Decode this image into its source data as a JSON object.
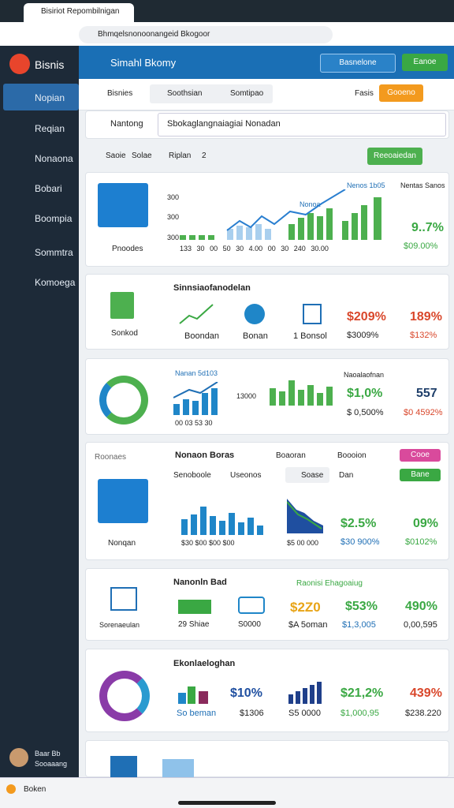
{
  "browser": {
    "tab": "Bisiriot Repombilnigan",
    "address": "Bhmqelsnonoonangeid Bkogoor"
  },
  "sidebar": {
    "logo": "Bisnis",
    "items": [
      "Nopian",
      "Reqian",
      "Nonaona",
      "Bobari",
      "Boompia",
      "Sommtra",
      "Komoega"
    ],
    "user": [
      "Baar Bb",
      "Sooaaang"
    ]
  },
  "header": {
    "title": "Simahl Bkomy",
    "buttons": [
      "Basnelone",
      "Eanoe"
    ]
  },
  "toolbar": {
    "tabs": [
      "Bisnies",
      "Soothsian",
      "Somtipao"
    ],
    "right": "Fasis",
    "action": "Gooeno"
  },
  "search": {
    "label": "Nantong",
    "value": "Sbokaglangnaiagiai Nonadan"
  },
  "filter": {
    "items": [
      "Saoie",
      "Solae",
      "Riplan",
      "2"
    ],
    "action": "Reeoaiedan"
  },
  "card1": {
    "name": "Pnoodes",
    "legend": "Nenos 1b05",
    "tag": "Nonoa",
    "note": "Nentas Sanos",
    "yticks": [
      "300",
      "300",
      "300"
    ],
    "xlabels": [
      "133",
      "30",
      "00",
      "50",
      "30",
      "4.00",
      "00",
      "30",
      "240",
      "30.00"
    ],
    "value": "9..7%",
    "sub": "$09.00%"
  },
  "card2": {
    "title": "Sinnsiaofanodelan",
    "name": "Sonkod",
    "items": [
      "Boondan",
      "Bonan",
      "1 Bonsol"
    ],
    "values": [
      "$209%",
      "189%"
    ],
    "subs": [
      "$3009%",
      "$132%"
    ]
  },
  "card3": {
    "legend": "Nanan 5d103",
    "xlabels": "00 03 53 30",
    "ytick": "13000",
    "note": "Naoalaofnan",
    "values": [
      "$1,0%",
      "557"
    ],
    "subs": [
      "$ 0,500%",
      "$0 4592%"
    ]
  },
  "card4": {
    "side": "Roonaes",
    "title": "Nonaon Boras",
    "links": [
      "Boaoran",
      "Boooion"
    ],
    "badge": "Cooe",
    "tabs": [
      "Senoboole",
      "Useonos",
      "Soase",
      "Dan"
    ],
    "badge2": "Bane",
    "name": "Nonqan",
    "values": [
      "$2.5%",
      "09%"
    ],
    "subs": [
      "$30 900%",
      "$0102%"
    ],
    "xlabels": "$30 $00 $00 $00",
    "xlabels2": "$5 00 000"
  },
  "card5": {
    "title": "Nanonln Bad",
    "note": "Raonisi Ehagoaiug",
    "name": "Sorenaeulan",
    "labels": [
      "29 Shiae",
      "S0000"
    ],
    "values": [
      "$2Z0",
      "$53%",
      "490%"
    ],
    "subs": [
      "$A 5oman",
      "$1,3,005",
      "0,00,595"
    ]
  },
  "card6": {
    "title": "Ekonlaeloghan",
    "values": [
      "$10%",
      "$21,2%",
      "439%"
    ],
    "subs": [
      "So beman",
      "$1306",
      "S5 0000",
      "$1,000,95",
      "$238.220"
    ]
  },
  "footer": {
    "label": "Boken"
  }
}
